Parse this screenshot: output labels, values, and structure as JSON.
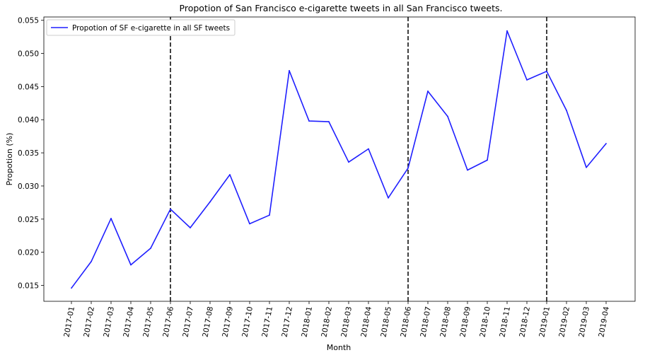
{
  "chart_data": {
    "type": "line",
    "title": "Propotion of San Francisco e-cigarette tweets in all San Francisco tweets.",
    "xlabel": "Month",
    "ylabel": "Propotion (%)",
    "categories": [
      "2017-01",
      "2017-02",
      "2017-03",
      "2017-04",
      "2017-05",
      "2017-06",
      "2017-07",
      "2017-08",
      "2017-09",
      "2017-10",
      "2017-11",
      "2017-12",
      "2018-01",
      "2018-02",
      "2018-03",
      "2018-04",
      "2018-05",
      "2018-06",
      "2018-07",
      "2018-08",
      "2018-09",
      "2018-10",
      "2018-11",
      "2018-12",
      "2019-01",
      "2019-02",
      "2019-03",
      "2019-04"
    ],
    "series": [
      {
        "name": "Propotion of SF e-cigarette in all SF tweets",
        "color": "#1f1fff",
        "values": [
          0.0146,
          0.0186,
          0.0251,
          0.0181,
          0.0206,
          0.0265,
          0.0237,
          0.0276,
          0.0317,
          0.0243,
          0.0256,
          0.0474,
          0.0398,
          0.0397,
          0.0336,
          0.0356,
          0.0282,
          0.0327,
          0.0443,
          0.0405,
          0.0324,
          0.0339,
          0.0534,
          0.046,
          0.0473,
          0.0414,
          0.0328,
          0.0364
        ]
      }
    ],
    "yticks": [
      "0.015",
      "0.020",
      "0.025",
      "0.030",
      "0.035",
      "0.040",
      "0.045",
      "0.050",
      "0.055"
    ],
    "ylim": [
      0.0126,
      0.0555
    ],
    "vlines": [
      "2017-06",
      "2018-06",
      "2019-01"
    ],
    "vline_style": "dashed",
    "vline_color": "#000000",
    "grid": false,
    "legend_position": "top-left"
  }
}
